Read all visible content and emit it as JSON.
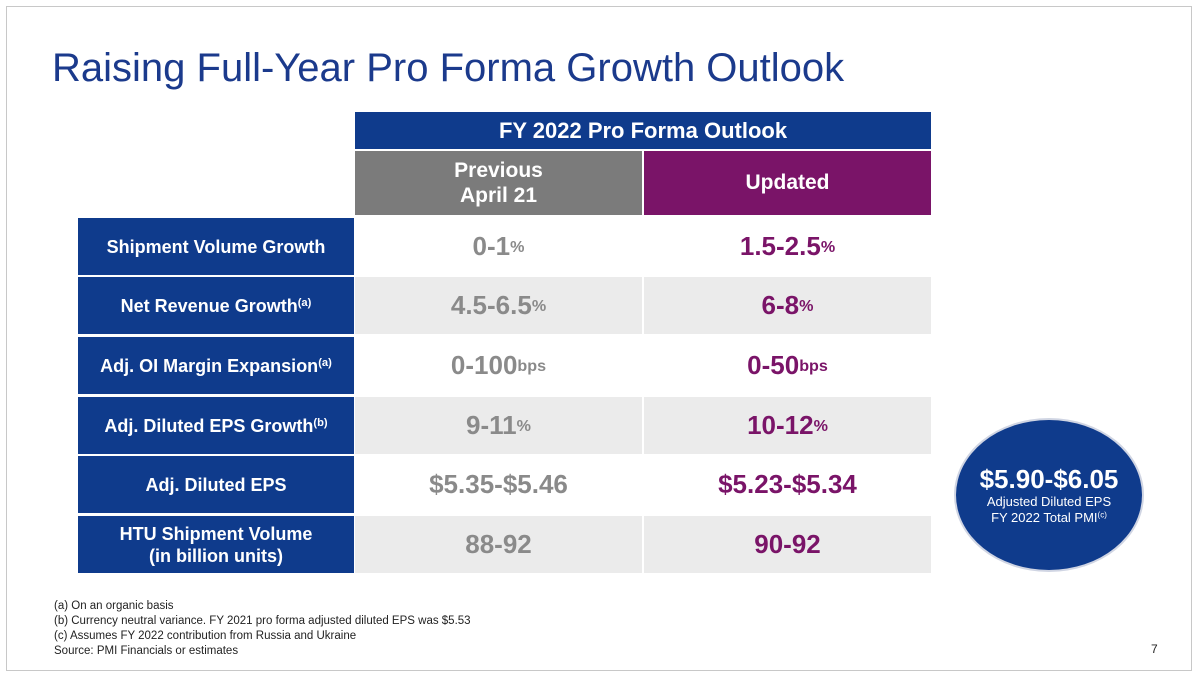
{
  "title": "Raising Full-Year Pro Forma Growth Outlook",
  "table": {
    "header": "FY 2022 Pro Forma Outlook",
    "col_previous_line1": "Previous",
    "col_previous_line2": "April 21",
    "col_updated": "Updated",
    "rows": [
      {
        "label": "Shipment Volume Growth",
        "label_sup": "",
        "previous": "0-1",
        "previous_unit": "%",
        "updated": "1.5-2.5",
        "updated_unit": "%"
      },
      {
        "label": "Net Revenue Growth",
        "label_sup": "(a)",
        "previous": "4.5-6.5",
        "previous_unit": "%",
        "updated": "6-8",
        "updated_unit": "%"
      },
      {
        "label": "Adj. OI Margin Expansion",
        "label_sup": "(a)",
        "previous": "0-100",
        "previous_unit": "bps",
        "updated": "0-50",
        "updated_unit": "bps"
      },
      {
        "label": "Adj. Diluted EPS Growth",
        "label_sup": "(b)",
        "previous": "9-11",
        "previous_unit": "%",
        "updated": "10-12",
        "updated_unit": "%"
      },
      {
        "label": "Adj. Diluted EPS",
        "label_sup": "",
        "previous": "$5.35-$5.46",
        "previous_unit": "",
        "updated": "$5.23-$5.34",
        "updated_unit": ""
      },
      {
        "label_line1": "HTU Shipment Volume",
        "label_line2": "(in billion units)",
        "previous": "88-92",
        "previous_unit": "",
        "updated": "90-92",
        "updated_unit": ""
      }
    ]
  },
  "callout": {
    "value": "$5.90-$6.05",
    "line1": "Adjusted Diluted EPS",
    "line2": "FY 2022 Total PMI",
    "line2_sup": "(c)"
  },
  "footnotes": [
    "(a) On an organic basis",
    "(b) Currency neutral variance. FY 2021 pro forma adjusted diluted EPS was $5.53",
    "(c) Assumes FY 2022 contribution from Russia and Ukraine",
    "Source: PMI Financials or estimates"
  ],
  "page_number": "7",
  "colors": {
    "navy": "#0f3b8c",
    "purple": "#7a1468",
    "gray": "#7b7b7b"
  }
}
